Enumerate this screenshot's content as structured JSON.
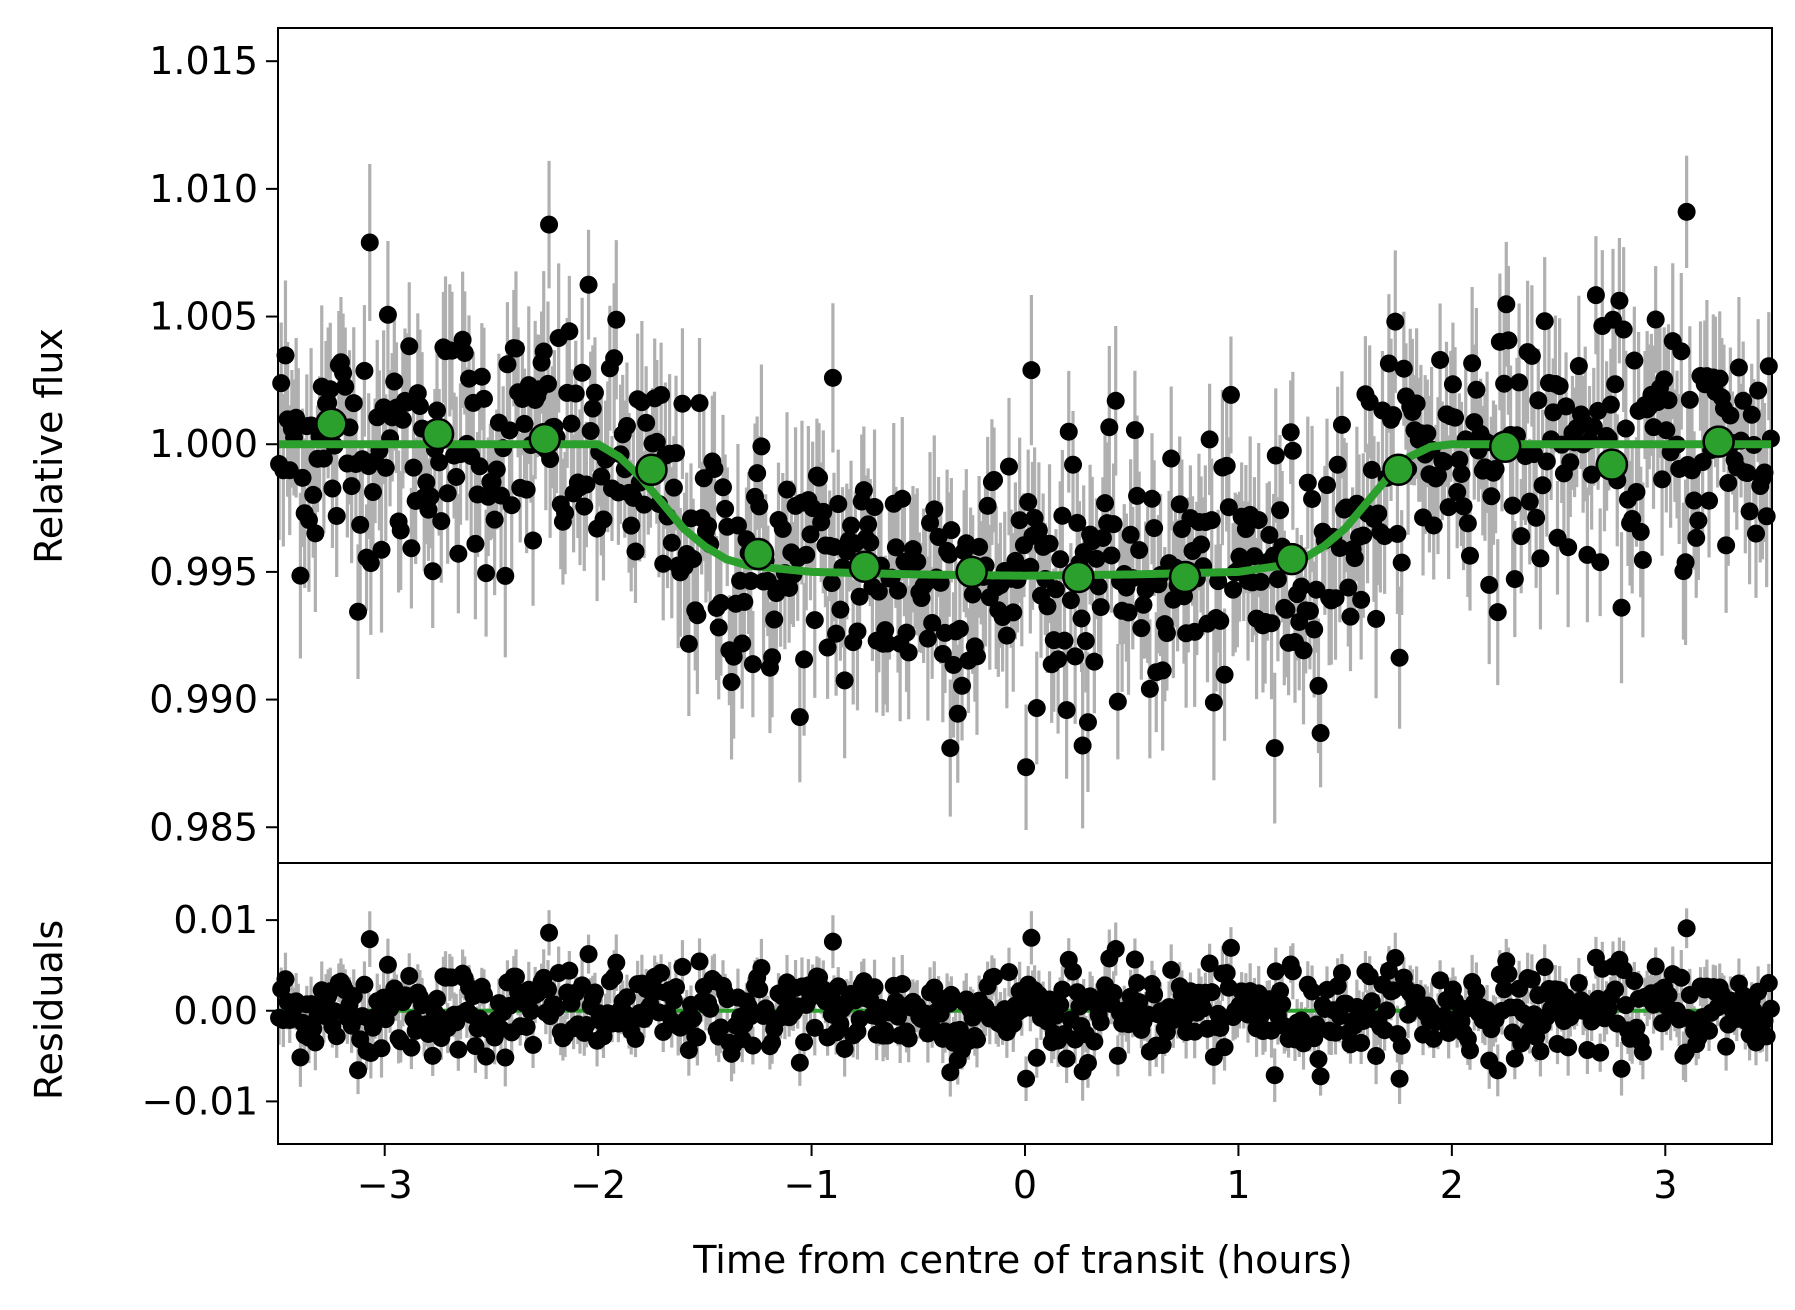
{
  "chart_data": [
    {
      "type": "scatter",
      "panel": "top",
      "title": "",
      "xlabel": "",
      "ylabel": "Relative flux",
      "xlim": [
        -3.5,
        3.5
      ],
      "ylim": [
        0.9836,
        1.0163
      ],
      "x_ticks": [
        -3,
        -2,
        -1,
        0,
        1,
        2,
        3
      ],
      "y_ticks": [
        0.985,
        0.99,
        0.995,
        1.0,
        1.005,
        1.01,
        1.015
      ],
      "y_tick_labels": [
        "0.985",
        "0.990",
        "0.995",
        "1.000",
        "1.005",
        "1.010",
        "1.015"
      ],
      "grid": false,
      "raw_points": {
        "marker_color": "#000000",
        "errorbar_color": "#b0b0b0",
        "typical_error": 0.0025,
        "count": 700,
        "scatter_std": 0.0025,
        "highlighted_values": [
          {
            "x": -2.23,
            "y": 1.0086
          },
          {
            "x": -3.07,
            "y": 1.0079
          },
          {
            "x": 3.1,
            "y": 1.0091
          },
          {
            "x": -0.35,
            "y": 0.9881
          },
          {
            "x": 1.17,
            "y": 0.9881
          },
          {
            "x": 0.27,
            "y": 0.9882
          },
          {
            "x": -0.9,
            "y": 1.0026
          },
          {
            "x": 0.03,
            "y": 1.0029
          }
        ]
      },
      "binned": {
        "name": "",
        "color": "#2ca02c",
        "x": [
          -3.25,
          -2.75,
          -2.25,
          -1.75,
          -1.25,
          -0.75,
          -0.25,
          0.25,
          0.75,
          1.25,
          1.75,
          2.25,
          2.75,
          3.25
        ],
        "y": [
          1.0008,
          1.0004,
          1.0002,
          0.999,
          0.9957,
          0.9952,
          0.995,
          0.9948,
          0.9948,
          0.9955,
          0.999,
          0.9999,
          0.9992,
          1.0001
        ]
      },
      "model": {
        "name": "",
        "color": "#2ca02c",
        "baseline": 1.0,
        "depth": 0.0052,
        "x": [
          -3.5,
          -2.0,
          -1.9,
          -1.8,
          -1.7,
          -1.6,
          -1.5,
          -1.4,
          -1.3,
          -1.0,
          -0.5,
          0.0,
          0.5,
          1.0,
          1.2,
          1.3,
          1.4,
          1.5,
          1.6,
          1.7,
          1.8,
          1.9,
          2.0,
          3.5
        ],
        "y": [
          1.0,
          1.0,
          0.9995,
          0.9987,
          0.9977,
          0.9967,
          0.996,
          0.9955,
          0.99525,
          0.995,
          0.9949,
          0.99485,
          0.9949,
          0.995,
          0.99525,
          0.9955,
          0.996,
          0.9967,
          0.9977,
          0.9987,
          0.9995,
          0.9999,
          1.0,
          1.0
        ]
      }
    },
    {
      "type": "scatter",
      "panel": "bottom",
      "title": "",
      "xlabel": "Time from centre of transit (hours)",
      "ylabel": "Residuals",
      "xlim": [
        -3.5,
        3.5
      ],
      "ylim": [
        -0.0147,
        0.0163
      ],
      "x_ticks": [
        -3,
        -2,
        -1,
        0,
        1,
        2,
        3
      ],
      "x_tick_labels": [
        "−3",
        "−2",
        "−1",
        "0",
        "1",
        "2",
        "3"
      ],
      "y_ticks": [
        -0.01,
        0.0,
        0.01
      ],
      "y_tick_labels": [
        "−0.01",
        "0.00",
        "0.01"
      ],
      "grid": false,
      "residual_points": {
        "marker_color": "#000000",
        "errorbar_color": "#b0b0b0",
        "typical_error": 0.0025,
        "scatter_std": 0.003,
        "count": 700
      },
      "zero_line": {
        "y": 0.0,
        "color": "#2ca02c"
      }
    }
  ]
}
